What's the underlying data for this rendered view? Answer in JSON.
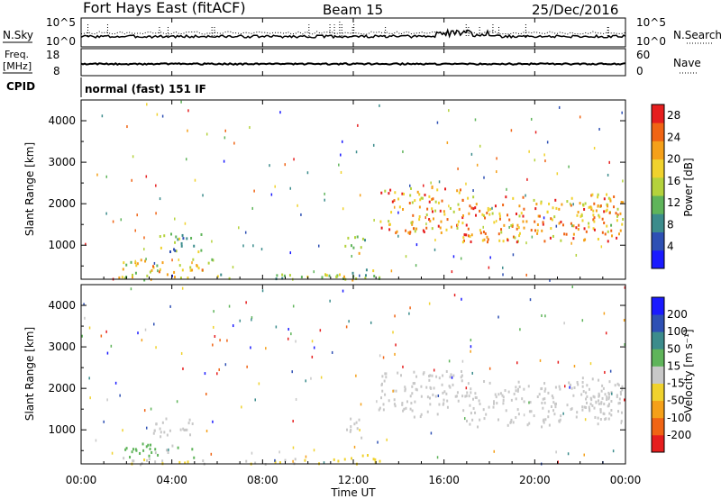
{
  "header": {
    "radar_title": "Fort Hays East (fitACF)",
    "beam_label": "Beam 15",
    "date_label": "25/Dec/2016"
  },
  "noise_panel": {
    "left_label": "N.Sky",
    "right_label": "N.Search",
    "left_ticks": [
      "10^5",
      "10^0"
    ],
    "right_ticks": [
      "10^5",
      "10^0"
    ]
  },
  "freq_panel": {
    "left_label_line1": "Freq.",
    "left_label_line2": "[MHz]",
    "right_label": "Nave",
    "left_ticks": [
      "18",
      "8"
    ],
    "right_ticks": [
      "60",
      "0"
    ]
  },
  "cpid_panel": {
    "left_label": "CPID",
    "mode_text": "normal (fast) 151 IF"
  },
  "power_panel": {
    "ylabel": "Slant Range [km]",
    "colorbar_label": "Power [dB]",
    "colorbar_ticks": [
      "28",
      "24",
      "20",
      "16",
      "12",
      "8",
      "4"
    ]
  },
  "velocity_panel": {
    "ylabel": "Slant Range [km]",
    "colorbar_label": "Velocity [m s⁻¹]",
    "colorbar_ticks": [
      "200",
      "100",
      "50",
      "15",
      "-15",
      "-50",
      "-100",
      "-200"
    ]
  },
  "range_ticks": [
    "1000",
    "2000",
    "3000",
    "4000"
  ],
  "time_ticks": [
    "00:00",
    "04:00",
    "08:00",
    "12:00",
    "16:00",
    "20:00",
    "00:00"
  ],
  "xlabel": "Time UT",
  "chart_data": [
    {
      "type": "heatmap",
      "quantity": "power",
      "units": "dB",
      "x_units": "hours UT",
      "y_units": "km",
      "xlim": [
        0,
        24
      ],
      "ylim": [
        180,
        4500
      ],
      "color_scale": {
        "min": 0,
        "max": 30,
        "colors": [
          "#1a1aff",
          "#2e50b4",
          "#3c8c8c",
          "#5fb45a",
          "#b4d23c",
          "#f0d22d",
          "#f5a019",
          "#f06414",
          "#e61e1e"
        ]
      },
      "regions": [
        {
          "t": [
            3.1,
            5.3
          ],
          "r": [
            850,
            1300
          ],
          "level": 12
        },
        {
          "t": [
            1.6,
            5.8
          ],
          "r": [
            350,
            700
          ],
          "level": 18
        },
        {
          "t": [
            1.6,
            12.2
          ],
          "r": [
            190,
            330
          ],
          "level": 16
        },
        {
          "t": [
            11.6,
            12.5
          ],
          "r": [
            800,
            1300
          ],
          "level": 16
        },
        {
          "t": [
            10.8,
            13.2
          ],
          "r": [
            220,
            450
          ],
          "level": 14
        },
        {
          "t": [
            13.1,
            16.8
          ],
          "r": [
            1300,
            2450
          ],
          "level": 22
        },
        {
          "t": [
            16.8,
            23.8
          ],
          "r": [
            1100,
            2200
          ],
          "level": 22
        },
        {
          "t": [
            22.0,
            23.9
          ],
          "r": [
            1500,
            2300
          ],
          "level": 20
        }
      ]
    },
    {
      "type": "heatmap",
      "quantity": "velocity",
      "units": "m/s",
      "x_units": "hours UT",
      "y_units": "km",
      "xlim": [
        0,
        24
      ],
      "ylim": [
        180,
        4500
      ],
      "color_scale": {
        "min": -250,
        "max": 250,
        "colors": [
          "#e61e1e",
          "#f06414",
          "#f5a019",
          "#f0d22d",
          "#c8c8c8",
          "#5fb45a",
          "#3c8c8c",
          "#2e50b4",
          "#1a1aff"
        ]
      },
      "regions": [
        {
          "t": [
            3.1,
            5.3
          ],
          "r": [
            850,
            1300
          ],
          "level": 0
        },
        {
          "t": [
            1.6,
            5.0
          ],
          "r": [
            350,
            700
          ],
          "level": 40
        },
        {
          "t": [
            2.0,
            12.2
          ],
          "r": [
            190,
            330
          ],
          "level": -30
        },
        {
          "t": [
            11.6,
            12.5
          ],
          "r": [
            800,
            1300
          ],
          "level": 0
        },
        {
          "t": [
            11.8,
            13.2
          ],
          "r": [
            220,
            450
          ],
          "level": -60
        },
        {
          "t": [
            13.1,
            16.8
          ],
          "r": [
            1300,
            2450
          ],
          "level": 0
        },
        {
          "t": [
            16.8,
            23.8
          ],
          "r": [
            1100,
            2200
          ],
          "level": 0
        },
        {
          "t": [
            22.0,
            23.9
          ],
          "r": [
            1500,
            2300
          ],
          "level": 0
        }
      ]
    }
  ]
}
